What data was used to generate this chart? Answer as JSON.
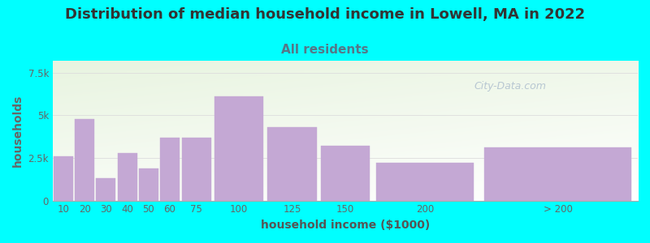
{
  "title": "Distribution of median household income in Lowell, MA in 2022",
  "subtitle": "All residents",
  "xlabel": "household income ($1000)",
  "ylabel": "households",
  "background_color": "#00FFFF",
  "bar_color": "#c4a8d4",
  "bar_edge_color": "#c4a8d4",
  "yticks": [
    0,
    2500,
    5000,
    7500
  ],
  "ytick_labels": [
    "0",
    "2.5k",
    "5k",
    "7.5k"
  ],
  "title_color": "#333333",
  "subtitle_color": "#557788",
  "ylabel_color": "#666666",
  "xlabel_color": "#555555",
  "tick_color": "#666666",
  "grid_color": "#dddddd",
  "title_fontsize": 13,
  "subtitle_fontsize": 11,
  "label_fontsize": 10,
  "categories": [
    "10",
    "20",
    "30",
    "40",
    "50",
    "60",
    "75",
    "100",
    "125",
    "150",
    "200",
    "> 200"
  ],
  "left_edges": [
    0,
    10,
    20,
    30,
    40,
    50,
    60,
    75,
    100,
    125,
    150,
    200
  ],
  "widths": [
    10,
    10,
    10,
    10,
    10,
    10,
    15,
    25,
    25,
    25,
    50,
    75
  ],
  "values": [
    2600,
    4800,
    1300,
    2800,
    1900,
    3700,
    3700,
    6100,
    4300,
    3200,
    2200,
    3100
  ],
  "watermark_text": "City-Data.com",
  "watermark_color": "#aabbcc",
  "plot_bg_colors": [
    "#e8f4e0",
    "#f8fcf4",
    "#ffffff",
    "#ffffff"
  ]
}
